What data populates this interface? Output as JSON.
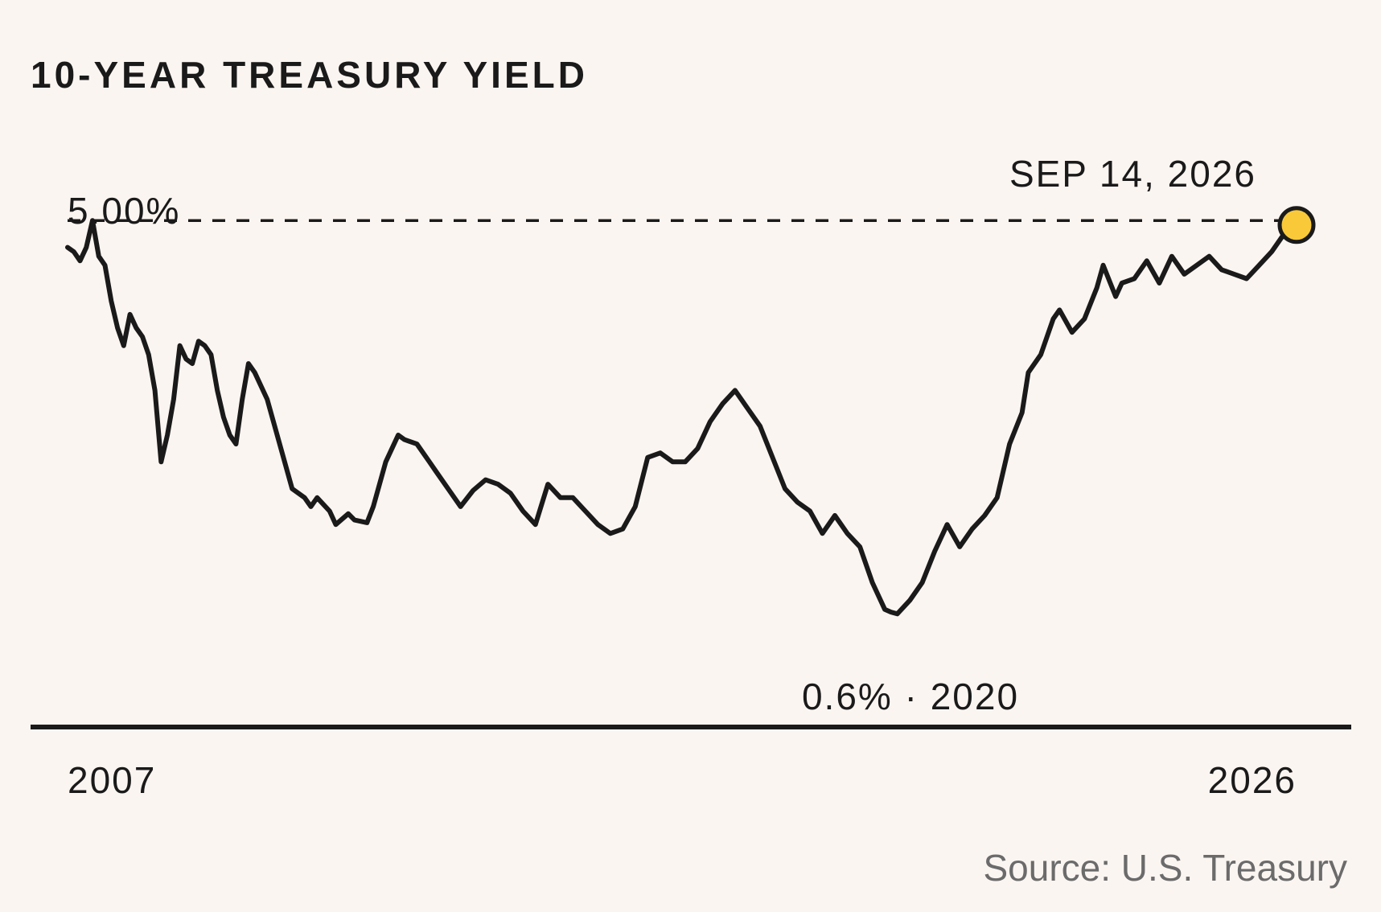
{
  "chart_data": {
    "type": "line",
    "title": "10-YEAR TREASURY YIELD",
    "source": "Source: U.S. Treasury",
    "x_start_label": "2007",
    "x_end_label": "2026",
    "x_range": [
      2007,
      2026.7
    ],
    "ylim": [
      0.0,
      5.2
    ],
    "y_unit": "%",
    "grid": false,
    "legend": "none",
    "colors": {
      "line": "#1a1a1a",
      "marker_fill": "#f9c93a",
      "background": "#fbf5f1",
      "source_text": "#6b6b6b"
    },
    "reference_line": {
      "value": 5.0,
      "label": "5.00%",
      "style": "dashed"
    },
    "annotations": {
      "end_label": "SEP 14, 2026",
      "low_label": "0.6% · 2020"
    },
    "min_point": {
      "x": 2020.3,
      "y": 0.6
    },
    "end_point": {
      "x": 2026.7,
      "y": 4.95
    },
    "series": [
      {
        "x": [
          2007.0,
          2007.1,
          2007.2,
          2007.3,
          2007.4,
          2007.5,
          2007.6,
          2007.7,
          2007.8,
          2007.9,
          2008.0,
          2008.1,
          2008.2,
          2008.3,
          2008.4,
          2008.5,
          2008.6,
          2008.7,
          2008.8,
          2008.9,
          2009.0,
          2009.1,
          2009.2,
          2009.3,
          2009.4,
          2009.5,
          2009.6,
          2009.7,
          2009.8,
          2009.9,
          2010.0,
          2010.2,
          2010.4,
          2010.6,
          2010.8,
          2010.9,
          2011.0,
          2011.2,
          2011.3,
          2011.5,
          2011.6,
          2011.8,
          2011.9,
          2012.1,
          2012.3,
          2012.4,
          2012.6,
          2012.8,
          2012.9,
          2013.1,
          2013.3,
          2013.5,
          2013.7,
          2013.9,
          2014.1,
          2014.3,
          2014.5,
          2014.7,
          2014.9,
          2015.1,
          2015.3,
          2015.5,
          2015.7,
          2015.9,
          2016.1,
          2016.3,
          2016.5,
          2016.7,
          2016.9,
          2017.1,
          2017.3,
          2017.5,
          2017.7,
          2017.9,
          2018.1,
          2018.3,
          2018.5,
          2018.7,
          2018.9,
          2019.1,
          2019.3,
          2019.5,
          2019.7,
          2019.9,
          2020.1,
          2020.2,
          2020.3,
          2020.5,
          2020.7,
          2020.9,
          2021.1,
          2021.3,
          2021.5,
          2021.7,
          2021.9,
          2022.1,
          2022.3,
          2022.4,
          2022.6,
          2022.8,
          2022.9,
          2023.1,
          2023.3,
          2023.5,
          2023.6,
          2023.8,
          2023.9,
          2024.1,
          2024.3,
          2024.5,
          2024.7,
          2024.9,
          2025.1,
          2025.3,
          2025.5,
          2025.7,
          2025.9,
          2026.1,
          2026.3,
          2026.5,
          2026.7
        ],
        "y": [
          4.7,
          4.65,
          4.55,
          4.7,
          5.0,
          4.6,
          4.5,
          4.1,
          3.8,
          3.6,
          3.95,
          3.8,
          3.7,
          3.5,
          3.1,
          2.3,
          2.6,
          3.0,
          3.6,
          3.45,
          3.4,
          3.65,
          3.6,
          3.5,
          3.1,
          2.8,
          2.6,
          2.5,
          3.0,
          3.4,
          3.3,
          3.0,
          2.5,
          2.0,
          1.9,
          1.8,
          1.9,
          1.75,
          1.6,
          1.72,
          1.65,
          1.62,
          1.8,
          2.3,
          2.6,
          2.55,
          2.5,
          2.3,
          2.2,
          2.0,
          1.8,
          1.98,
          2.1,
          2.05,
          1.95,
          1.75,
          1.6,
          2.05,
          1.9,
          1.9,
          1.75,
          1.6,
          1.5,
          1.55,
          1.8,
          2.35,
          2.4,
          2.3,
          2.3,
          2.45,
          2.75,
          2.95,
          3.1,
          2.9,
          2.7,
          2.35,
          2.0,
          1.85,
          1.75,
          1.5,
          1.7,
          1.5,
          1.35,
          0.95,
          0.65,
          0.62,
          0.6,
          0.75,
          0.95,
          1.3,
          1.6,
          1.35,
          1.55,
          1.7,
          1.9,
          2.5,
          2.85,
          3.3,
          3.5,
          3.9,
          4.0,
          3.75,
          3.9,
          4.25,
          4.5,
          4.15,
          4.3,
          4.35,
          4.55,
          4.3,
          4.6,
          4.4,
          4.5,
          4.6,
          4.45,
          4.4,
          4.35,
          4.5,
          4.65,
          4.85,
          4.95
        ]
      }
    ]
  }
}
